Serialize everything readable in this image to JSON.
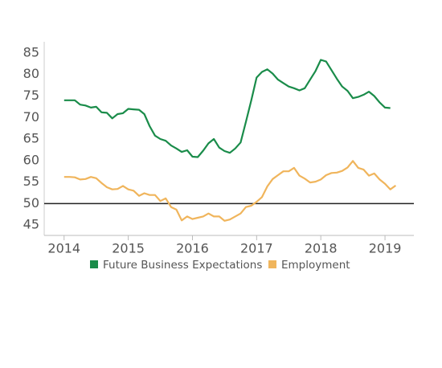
{
  "chart_data": {
    "type": "line",
    "x": [
      2014,
      2014.083,
      2014.167,
      2014.25,
      2014.333,
      2014.417,
      2014.5,
      2014.583,
      2014.667,
      2014.75,
      2014.833,
      2014.917,
      2015,
      2015.083,
      2015.167,
      2015.25,
      2015.333,
      2015.417,
      2015.5,
      2015.583,
      2015.667,
      2015.75,
      2015.833,
      2015.917,
      2016,
      2016.083,
      2016.167,
      2016.25,
      2016.333,
      2016.417,
      2016.5,
      2016.583,
      2016.667,
      2016.75,
      2016.833,
      2016.917,
      2017,
      2017.083,
      2017.167,
      2017.25,
      2017.333,
      2017.417,
      2017.5,
      2017.583,
      2017.667,
      2017.75,
      2017.833,
      2017.917,
      2018,
      2018.083,
      2018.167,
      2018.25,
      2018.333,
      2018.417,
      2018.5,
      2018.583,
      2018.667,
      2018.75,
      2018.833,
      2018.917,
      2019,
      2019.083,
      2019.167
    ],
    "series": [
      {
        "name": "Future Business Expectations",
        "color": "#1a8c4a",
        "values": [
          74,
          74,
          74,
          73,
          72.8,
          72.3,
          72.5,
          71.2,
          71.1,
          69.8,
          70.8,
          71,
          72,
          71.9,
          71.8,
          70.8,
          68,
          65.8,
          65,
          64.6,
          63.5,
          62.8,
          62,
          62.4,
          60.9,
          60.8,
          62.3,
          64,
          65,
          63,
          62.2,
          61.8,
          62.8,
          64.2,
          69,
          74,
          79.3,
          80.6,
          81.2,
          80.2,
          78.8,
          78,
          77.2,
          76.8,
          76.3,
          76.8,
          78.8,
          80.8,
          83.4,
          83,
          81,
          79,
          77.2,
          76.2,
          74.5,
          74.8,
          75.3,
          76,
          75,
          73.5,
          72.3,
          72.2,
          null
        ]
      },
      {
        "name": "Employment",
        "color": "#f0b55c",
        "values": [
          56.2,
          56.2,
          56.1,
          55.6,
          55.7,
          56.2,
          55.9,
          54.8,
          53.8,
          53.3,
          53.4,
          54.1,
          53.3,
          53,
          51.8,
          52.4,
          52,
          52,
          50.6,
          51.2,
          49.2,
          48.6,
          46.1,
          47,
          46.4,
          46.7,
          47,
          47.7,
          47,
          47,
          46,
          46.3,
          47,
          47.7,
          49.2,
          49.5,
          50.4,
          51.5,
          54,
          55.7,
          56.6,
          57.5,
          57.5,
          58.3,
          56.5,
          55.8,
          54.9,
          55.1,
          55.6,
          56.6,
          57.1,
          57.2,
          57.6,
          58.4,
          59.9,
          58.3,
          57.9,
          56.5,
          57,
          55.6,
          54.6,
          53.3,
          54.2
        ]
      }
    ],
    "xlim": [
      2013.69,
      2019.45
    ],
    "xticks": [
      2014,
      2015,
      2016,
      2017,
      2018,
      2019
    ],
    "ylim": [
      42.6,
      87.6
    ],
    "yticks": [
      45,
      50,
      55,
      60,
      65,
      70,
      75,
      80,
      85
    ],
    "reference_line": 50,
    "reference_color": "#222"
  }
}
